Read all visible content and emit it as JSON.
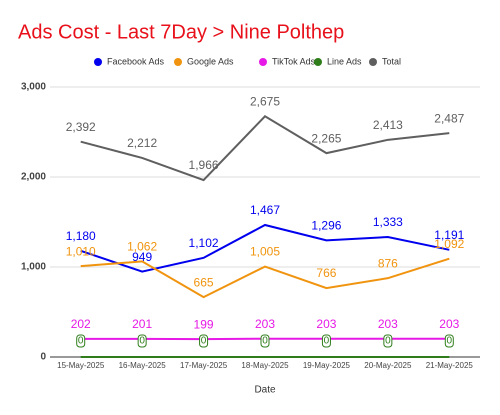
{
  "chart_data": {
    "type": "line",
    "title": "Ads Cost - Last 7Day > Nine Polthep",
    "xlabel": "Date",
    "categories": [
      "15-May-2025",
      "16-May-2025",
      "17-May-2025",
      "18-May-2025",
      "19-May-2025",
      "20-May-2025",
      "21-May-2025"
    ],
    "series": [
      {
        "name": "Facebook Ads",
        "color": "#0000ee",
        "values": [
          1180,
          949,
          1102,
          1467,
          1296,
          1333,
          1191
        ],
        "value_labels": [
          "1,180",
          "949",
          "1,102",
          "1,467",
          "1,296",
          "1,333",
          "1,191"
        ]
      },
      {
        "name": "Google Ads",
        "color": "#f0940f",
        "values": [
          1010,
          1062,
          665,
          1005,
          766,
          876,
          1092
        ],
        "value_labels": [
          "1,010",
          "1,062",
          "665",
          "1,005",
          "766",
          "876",
          "1,092"
        ]
      },
      {
        "name": "TikTok Ads",
        "color": "#e619e6",
        "values": [
          202,
          201,
          199,
          203,
          203,
          203,
          203
        ]
      },
      {
        "name": "Line Ads",
        "color": "#2e7d1a",
        "values": [
          0,
          0,
          0,
          0,
          0,
          0,
          0
        ]
      },
      {
        "name": "Total",
        "color": "#5f5f5f",
        "values": [
          2392,
          2212,
          1966,
          2675,
          2265,
          2413,
          2487
        ],
        "value_labels": [
          "2,392",
          "2,212",
          "1,966",
          "2,675",
          "2,265",
          "2,413",
          "2,487"
        ]
      }
    ],
    "ylim": [
      0,
      3000
    ],
    "yticks": [
      0,
      {
        "value": 1000,
        "label": "1,000"
      },
      {
        "value": 2000,
        "label": "2,000"
      },
      {
        "value": 3000,
        "label": "3,000"
      }
    ],
    "grid": true,
    "legend": "top"
  }
}
